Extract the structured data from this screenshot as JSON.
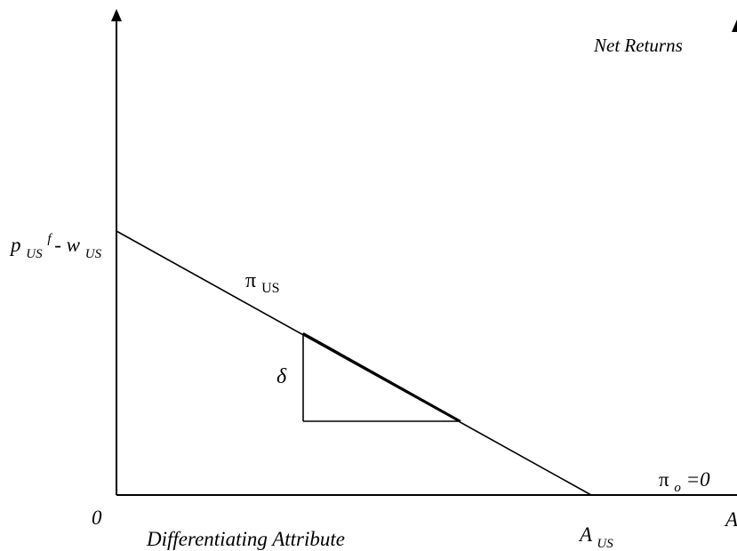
{
  "diagram": {
    "y_axis_label": "Net Returns",
    "x_axis_label": "Differentiating Attribute",
    "x_axis_end_label": "A",
    "origin_label": "0",
    "intercept_label": {
      "p": "p",
      "p_sub": "US",
      "p_sup": "f",
      "minus": "- w",
      "w_sub": "US"
    },
    "pi_us_label": {
      "symbol": "π",
      "sub": "US"
    },
    "delta_label": "δ",
    "pi_o_label": {
      "symbol": "π",
      "sub": "o",
      "rest": "=0"
    },
    "a_us_label": {
      "symbol": "A",
      "sub": "US"
    }
  }
}
